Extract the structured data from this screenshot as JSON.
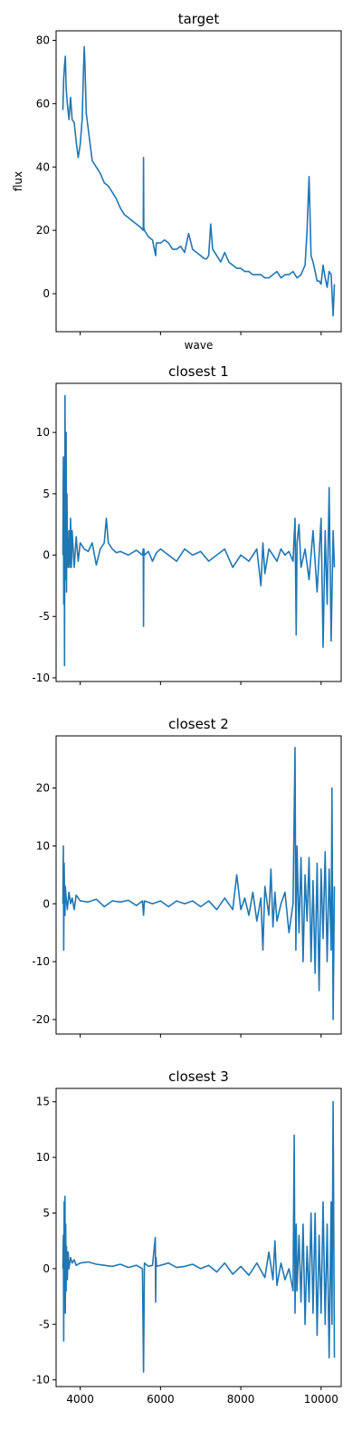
{
  "chart_data": [
    {
      "type": "line",
      "title": "target",
      "xlabel": "wave",
      "ylabel": "flux",
      "xlim": [
        3400,
        10500
      ],
      "ylim": [
        -12,
        83
      ],
      "xticks": [
        4000,
        6000,
        8000,
        10000
      ],
      "xticklabels_shown": false,
      "yticks": [
        0,
        20,
        40,
        60,
        80
      ],
      "grid": false,
      "color": "#1f77b4",
      "series": [
        {
          "x": [
            3570,
            3590,
            3610,
            3630,
            3650,
            3680,
            3720,
            3760,
            3800,
            3850,
            3900,
            3950,
            4000,
            4050,
            4080,
            4100,
            4120,
            4150,
            4200,
            4300,
            4400,
            4500,
            4600,
            4700,
            4800,
            4900,
            5000,
            5100,
            5200,
            5300,
            5400,
            5500,
            5570,
            5577,
            5585,
            5600,
            5700,
            5800,
            5880,
            5890,
            5900,
            6000,
            6100,
            6200,
            6300,
            6400,
            6500,
            6600,
            6700,
            6800,
            6900,
            7000,
            7100,
            7150,
            7200,
            7250,
            7300,
            7400,
            7500,
            7600,
            7700,
            7800,
            7900,
            8000,
            8100,
            8200,
            8300,
            8400,
            8500,
            8600,
            8700,
            8800,
            8900,
            9000,
            9100,
            9200,
            9300,
            9400,
            9500,
            9600,
            9650,
            9700,
            9720,
            9750,
            9800,
            9850,
            9900,
            9950,
            10000,
            10050,
            10100,
            10150,
            10200,
            10250,
            10300,
            10330
          ],
          "y": [
            58,
            68,
            72,
            75,
            65,
            60,
            55,
            62,
            55,
            54,
            48,
            43,
            47,
            55,
            70,
            78,
            72,
            57,
            52,
            42,
            40,
            38,
            35,
            34,
            32,
            30,
            27,
            25,
            24,
            23,
            22,
            21,
            20,
            43,
            21,
            20,
            18,
            17,
            12,
            15,
            16,
            16,
            17,
            16,
            14,
            14,
            15,
            13,
            19,
            14,
            13,
            12,
            11,
            11,
            12,
            22,
            14,
            12,
            10,
            13,
            10,
            9,
            8,
            8,
            7,
            7,
            6,
            6,
            6,
            5,
            5,
            6,
            7,
            5,
            6,
            6,
            7,
            5,
            6,
            9,
            20,
            37,
            27,
            12,
            10,
            7,
            4,
            4,
            3,
            9,
            5,
            2,
            7,
            6,
            -7,
            3
          ]
        }
      ]
    },
    {
      "type": "line",
      "title": "closest 1",
      "xlim": [
        3400,
        10500
      ],
      "ylim": [
        -10.3,
        14
      ],
      "xticks": [
        4000,
        6000,
        8000,
        10000
      ],
      "xticklabels_shown": false,
      "yticks": [
        -10,
        -5,
        0,
        5,
        10
      ],
      "grid": false,
      "color": "#1f77b4",
      "series": [
        {
          "x": [
            3570,
            3580,
            3590,
            3600,
            3610,
            3620,
            3630,
            3640,
            3650,
            3660,
            3670,
            3680,
            3700,
            3720,
            3740,
            3760,
            3780,
            3800,
            3850,
            3900,
            3950,
            4000,
            4100,
            4200,
            4300,
            4400,
            4500,
            4600,
            4650,
            4700,
            4800,
            4900,
            5000,
            5200,
            5400,
            5550,
            5570,
            5577,
            5585,
            5600,
            5700,
            5800,
            5900,
            6000,
            6200,
            6400,
            6600,
            6800,
            7000,
            7200,
            7400,
            7600,
            7800,
            8000,
            8200,
            8400,
            8500,
            8550,
            8600,
            8700,
            8800,
            8900,
            9000,
            9100,
            9200,
            9300,
            9350,
            9380,
            9400,
            9450,
            9500,
            9600,
            9700,
            9800,
            9900,
            10000,
            10050,
            10100,
            10150,
            10200,
            10250,
            10300,
            10330
          ],
          "y": [
            0,
            8,
            -4,
            7,
            -9,
            13,
            6,
            -2,
            10,
            -3,
            5,
            1,
            -1,
            2,
            -1,
            3,
            -1,
            2,
            -1,
            1.5,
            -0.5,
            1,
            0.5,
            0.3,
            1,
            -0.8,
            0.5,
            1,
            3,
            1,
            0.5,
            0.2,
            0.3,
            0,
            0.4,
            0,
            0.5,
            -5.8,
            0.5,
            0,
            0.3,
            -0.5,
            0.2,
            0.5,
            0,
            -0.5,
            0.5,
            0,
            0.3,
            -0.5,
            0,
            0.5,
            -1,
            0,
            -0.5,
            0.5,
            -2.5,
            1,
            -1.5,
            0.5,
            0,
            -0.5,
            0.5,
            0,
            0.3,
            -0.5,
            3,
            -6.5,
            1,
            2.5,
            -1,
            0.5,
            -2,
            2,
            -3,
            3,
            -7.5,
            2,
            -4,
            5.5,
            -7,
            2,
            -1
          ]
        }
      ]
    },
    {
      "type": "line",
      "title": "closest 2",
      "xlim": [
        3400,
        10500
      ],
      "ylim": [
        -22.5,
        29
      ],
      "xticks": [
        4000,
        6000,
        8000,
        10000
      ],
      "xticklabels_shown": false,
      "yticks": [
        -20,
        -10,
        0,
        10,
        20
      ],
      "grid": false,
      "color": "#1f77b4",
      "series": [
        {
          "x": [
            3570,
            3580,
            3590,
            3600,
            3610,
            3620,
            3630,
            3650,
            3680,
            3720,
            3760,
            3800,
            3850,
            3900,
            4000,
            4200,
            4400,
            4600,
            4800,
            5000,
            5200,
            5400,
            5550,
            5577,
            5600,
            5800,
            6000,
            6200,
            6400,
            6600,
            6800,
            7000,
            7200,
            7400,
            7600,
            7800,
            7900,
            8000,
            8100,
            8200,
            8300,
            8400,
            8500,
            8550,
            8600,
            8700,
            8750,
            8800,
            8850,
            8900,
            9000,
            9100,
            9200,
            9300,
            9350,
            9370,
            9400,
            9450,
            9500,
            9550,
            9600,
            9650,
            9700,
            9750,
            9800,
            9850,
            9900,
            9950,
            10000,
            10050,
            10100,
            10150,
            10200,
            10250,
            10270,
            10300,
            10330
          ],
          "y": [
            0,
            10,
            -8,
            7,
            2,
            -2,
            3,
            1,
            -1,
            2,
            0,
            1,
            -1,
            1.5,
            0.5,
            0.3,
            0.8,
            -0.5,
            0.5,
            0.3,
            0.6,
            -0.3,
            0.5,
            -2,
            0.5,
            0,
            0.5,
            -0.5,
            0.5,
            0,
            0.5,
            -0.5,
            0.5,
            -1,
            1,
            -1,
            5,
            -1,
            1,
            -2,
            2,
            -3,
            1,
            -8,
            3,
            -2,
            6,
            -4,
            2,
            -3,
            0,
            2,
            -5,
            0,
            27,
            -8,
            10,
            -5,
            8,
            -10,
            5,
            -3,
            8,
            -10,
            4,
            -12,
            7,
            -15,
            6,
            -6,
            9,
            -10,
            6,
            -8,
            20,
            -20,
            3
          ]
        }
      ]
    },
    {
      "type": "line",
      "title": "closest 3",
      "xlim": [
        3400,
        10500
      ],
      "ylim": [
        -10.6,
        16.2
      ],
      "xticks": [
        4000,
        6000,
        8000,
        10000
      ],
      "xticklabels": [
        "4000",
        "6000",
        "8000",
        "10000"
      ],
      "yticks": [
        -10,
        -5,
        0,
        5,
        10,
        15
      ],
      "grid": false,
      "color": "#1f77b4",
      "series": [
        {
          "x": [
            3570,
            3580,
            3590,
            3600,
            3610,
            3620,
            3630,
            3640,
            3650,
            3660,
            3680,
            3700,
            3720,
            3760,
            3800,
            3850,
            3900,
            4000,
            4200,
            4400,
            4600,
            4800,
            5000,
            5200,
            5400,
            5550,
            5577,
            5600,
            5700,
            5800,
            5870,
            5880,
            5890,
            5900,
            6000,
            6200,
            6400,
            6600,
            6800,
            7000,
            7200,
            7400,
            7600,
            7800,
            8000,
            8200,
            8400,
            8600,
            8700,
            8800,
            8850,
            8900,
            9000,
            9100,
            9200,
            9300,
            9330,
            9350,
            9380,
            9400,
            9450,
            9500,
            9550,
            9600,
            9650,
            9700,
            9750,
            9800,
            9850,
            9900,
            9950,
            10000,
            10050,
            10100,
            10150,
            10200,
            10250,
            10270,
            10300,
            10330
          ],
          "y": [
            0,
            3,
            -6.5,
            6,
            -1,
            6.5,
            -4,
            4,
            -2,
            2,
            -1,
            1.5,
            0,
            1,
            0.5,
            0.8,
            0.3,
            0.5,
            0.6,
            0.4,
            0.3,
            0.2,
            0.4,
            0.1,
            0.3,
            0,
            -9.3,
            0.5,
            0.2,
            0.3,
            2.8,
            -3,
            1,
            0.2,
            0.3,
            0.5,
            0.1,
            0.2,
            0.4,
            0,
            0.3,
            -0.3,
            0.5,
            -0.5,
            0.2,
            -0.6,
            0.5,
            -0.8,
            1.5,
            -1,
            2.5,
            -1.5,
            0.5,
            -1,
            0,
            -2,
            12,
            -4,
            4,
            -2,
            3,
            -3,
            4,
            -5,
            2,
            -3,
            5,
            -4,
            5,
            -6,
            3,
            -4,
            6,
            -5,
            4,
            -8,
            6,
            -5,
            15,
            -8
          ]
        }
      ]
    }
  ]
}
